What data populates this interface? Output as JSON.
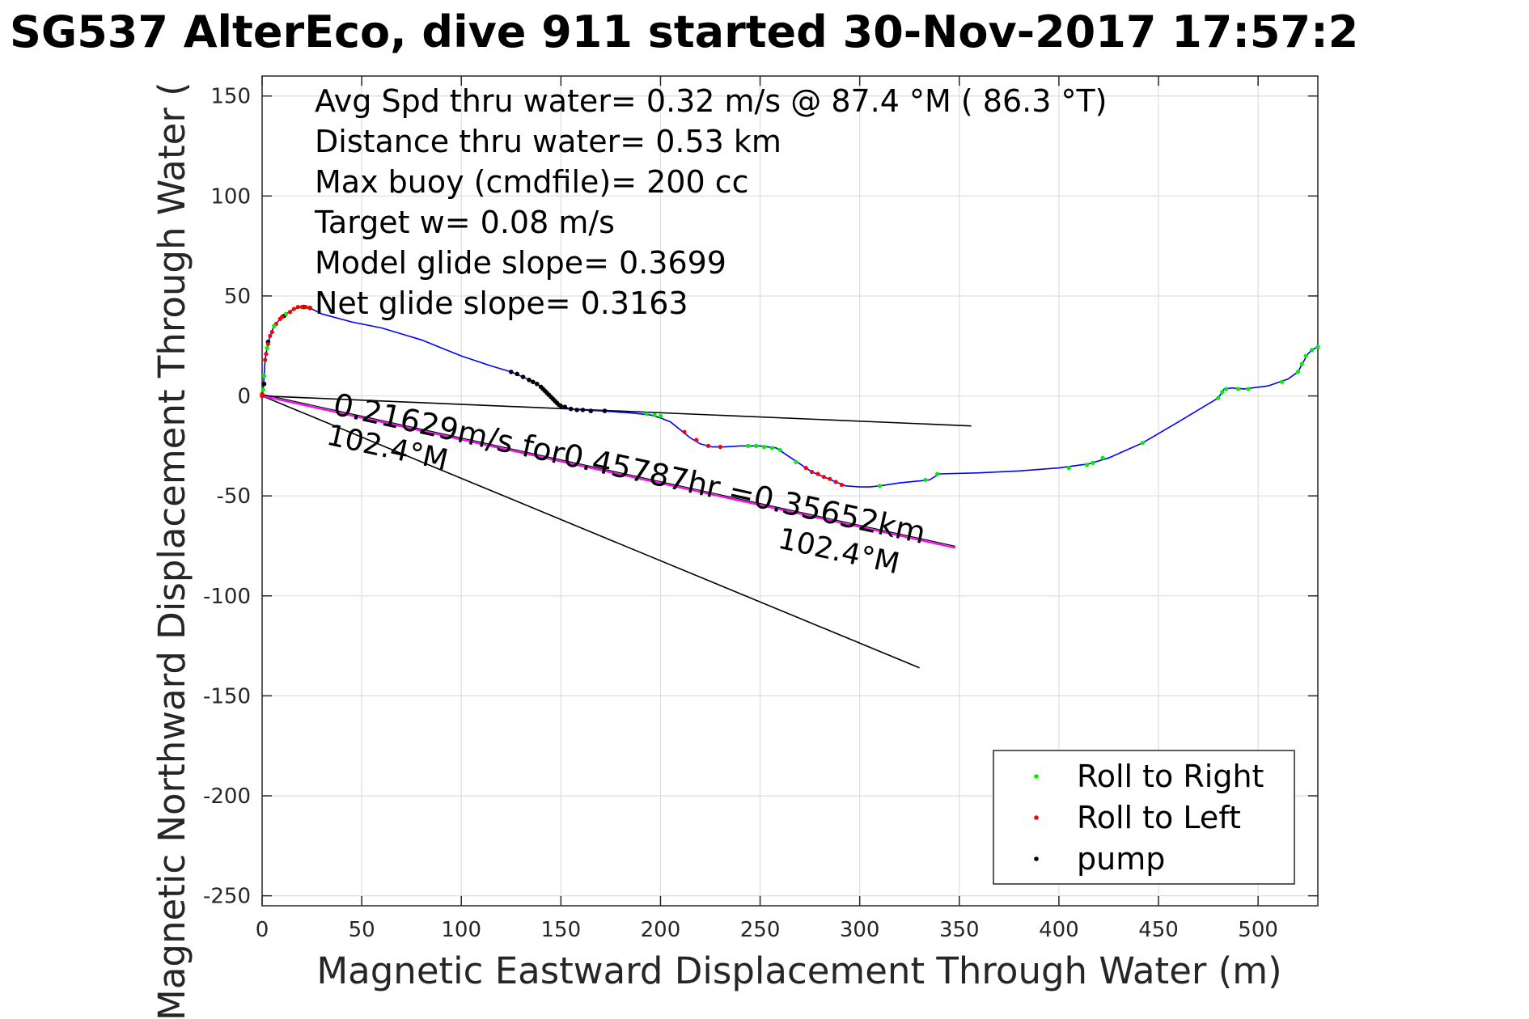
{
  "chart_data": {
    "type": "scatter",
    "title": "SG537 AlterEco, dive 911 started 30-Nov-2017 17:57:2",
    "xlabel": "Magnetic Eastward Displacement Through Water (m)",
    "ylabel": "Magnetic Northward Displacement Through Water (",
    "xlim": [
      0,
      530
    ],
    "ylim": [
      -255,
      160
    ],
    "xticks": [
      0,
      50,
      100,
      150,
      200,
      250,
      300,
      350,
      400,
      450,
      500
    ],
    "yticks": [
      150,
      100,
      50,
      0,
      -50,
      -100,
      -150,
      -200,
      -250
    ],
    "grid": true,
    "legend_position": "bottom-right",
    "info_lines": [
      "Avg Spd thru water=  0.32 m/s @  87.4 °M ( 86.3 °T)",
      "Distance thru water=  0.53 km",
      "Max buoy (cmdfile)= 200 cc",
      "Target w= 0.08 m/s",
      "Model glide slope= 0.3699",
      "Net glide slope= 0.3163"
    ],
    "annotations": {
      "current_label": "0.21629m/s for0.45787hr =0.35652km",
      "heading_label_1": "102.4°M",
      "heading_label_2": "102.4°M"
    },
    "colors": {
      "track": "#0000ff",
      "roll_right": "#00ee00",
      "roll_left": "#ff0000",
      "pump": "#000000",
      "current_line": "#ff00ff",
      "reference_lines": "#000000",
      "grid": "#dddddd"
    },
    "track": [
      [
        0,
        0
      ],
      [
        0.5,
        3
      ],
      [
        1,
        10
      ],
      [
        1.5,
        18
      ],
      [
        2.5,
        24
      ],
      [
        4,
        30
      ],
      [
        6,
        35
      ],
      [
        9,
        38.5
      ],
      [
        12,
        41
      ],
      [
        16,
        43.5
      ],
      [
        20,
        44.5
      ],
      [
        24,
        44
      ],
      [
        30,
        41
      ],
      [
        45,
        37
      ],
      [
        60,
        34
      ],
      [
        80,
        28
      ],
      [
        100,
        20
      ],
      [
        115,
        15
      ],
      [
        125,
        12
      ],
      [
        132,
        9
      ],
      [
        138,
        6
      ],
      [
        142,
        3
      ],
      [
        145,
        0
      ],
      [
        148,
        -3
      ],
      [
        150,
        -5
      ],
      [
        155,
        -6.5
      ],
      [
        160,
        -7
      ],
      [
        170,
        -7.5
      ],
      [
        185,
        -8.5
      ],
      [
        195,
        -9.5
      ],
      [
        200,
        -11
      ],
      [
        205,
        -13
      ],
      [
        210,
        -17
      ],
      [
        215,
        -21
      ],
      [
        220,
        -24
      ],
      [
        226,
        -25.5
      ],
      [
        232,
        -25.5
      ],
      [
        240,
        -25
      ],
      [
        250,
        -25
      ],
      [
        258,
        -26
      ],
      [
        264,
        -30
      ],
      [
        270,
        -34
      ],
      [
        276,
        -38
      ],
      [
        282,
        -40.5
      ],
      [
        288,
        -43
      ],
      [
        293,
        -45
      ],
      [
        300,
        -45.5
      ],
      [
        305,
        -45.5
      ],
      [
        310,
        -45
      ],
      [
        320,
        -43.5
      ],
      [
        335,
        -42
      ],
      [
        340,
        -39
      ],
      [
        360,
        -38.5
      ],
      [
        380,
        -37.5
      ],
      [
        400,
        -36
      ],
      [
        415,
        -34
      ],
      [
        425,
        -31
      ],
      [
        442,
        -23.5
      ],
      [
        460,
        -13
      ],
      [
        480,
        -1
      ],
      [
        483,
        3.5
      ],
      [
        487,
        4
      ],
      [
        493,
        3.5
      ],
      [
        505,
        5
      ],
      [
        515,
        8.5
      ],
      [
        520,
        12
      ],
      [
        523,
        17.5
      ],
      [
        525,
        21
      ],
      [
        527,
        23
      ],
      [
        530,
        24.5
      ]
    ],
    "roll_right": [
      [
        0.5,
        3
      ],
      [
        1,
        10
      ],
      [
        2.5,
        24
      ],
      [
        6,
        35
      ],
      [
        12,
        41
      ],
      [
        193,
        -9
      ],
      [
        197,
        -9.5
      ],
      [
        200,
        -10
      ],
      [
        244,
        -25
      ],
      [
        248,
        -25
      ],
      [
        252,
        -25.5
      ],
      [
        256,
        -26
      ],
      [
        260,
        -27
      ],
      [
        268,
        -33
      ],
      [
        310,
        -45
      ],
      [
        333,
        -42
      ],
      [
        339,
        -39
      ],
      [
        405,
        -36
      ],
      [
        414,
        -34.5
      ],
      [
        417,
        -33.5
      ],
      [
        422,
        -31
      ],
      [
        442,
        -23.5
      ],
      [
        480,
        -1
      ],
      [
        482,
        2
      ],
      [
        484,
        3.5
      ],
      [
        490,
        3.5
      ],
      [
        495,
        3.5
      ],
      [
        512,
        7
      ],
      [
        520,
        12
      ],
      [
        522,
        16
      ],
      [
        524,
        20
      ],
      [
        527,
        23
      ],
      [
        530,
        24.5
      ]
    ],
    "roll_left": [
      [
        0,
        0
      ],
      [
        0,
        1
      ],
      [
        1.5,
        18
      ],
      [
        2,
        21
      ],
      [
        3,
        26
      ],
      [
        4,
        30
      ],
      [
        5,
        32
      ],
      [
        7,
        36
      ],
      [
        9,
        38.5
      ],
      [
        10,
        39.5
      ],
      [
        14,
        42
      ],
      [
        16,
        43.5
      ],
      [
        18,
        44.5
      ],
      [
        20,
        44.5
      ],
      [
        22,
        44.5
      ],
      [
        24,
        44
      ],
      [
        212,
        -18
      ],
      [
        218,
        -22
      ],
      [
        224,
        -25
      ],
      [
        230,
        -25.5
      ],
      [
        273,
        -36
      ],
      [
        276,
        -38
      ],
      [
        279,
        -39
      ],
      [
        282,
        -40.5
      ],
      [
        285,
        -41.5
      ],
      [
        288,
        -43
      ],
      [
        291,
        -44.5
      ]
    ],
    "pump": [
      [
        125,
        12
      ],
      [
        128,
        11
      ],
      [
        131,
        9.5
      ],
      [
        134,
        8
      ],
      [
        136,
        7
      ],
      [
        138,
        6
      ],
      [
        140,
        4.5
      ],
      [
        141,
        3.5
      ],
      [
        142,
        2.5
      ],
      [
        143,
        1.5
      ],
      [
        144,
        0.5
      ],
      [
        145,
        -0.5
      ],
      [
        146,
        -1.5
      ],
      [
        147,
        -2.5
      ],
      [
        148,
        -3.5
      ],
      [
        149,
        -4.5
      ],
      [
        150,
        -5
      ],
      [
        152,
        -5.5
      ],
      [
        155,
        -6.5
      ],
      [
        158,
        -7
      ],
      [
        161,
        -7
      ],
      [
        165,
        -7.5
      ],
      [
        172,
        -7.5
      ],
      [
        0,
        0
      ],
      [
        1,
        6
      ],
      [
        3,
        27
      ],
      [
        11,
        40
      ],
      [
        21,
        44.5
      ],
      [
        24,
        44
      ]
    ],
    "reference_lines": [
      [
        [
          0,
          0
        ],
        [
          356,
          -15
        ]
      ],
      [
        [
          0,
          0
        ],
        [
          330,
          -136
        ]
      ]
    ],
    "current_line": [
      [
        0,
        0
      ],
      [
        348,
        -76
      ]
    ],
    "legend": [
      {
        "label": "Roll to Right",
        "key": "roll_right"
      },
      {
        "label": "Roll to Left",
        "key": "roll_left"
      },
      {
        "label": "pump",
        "key": "pump"
      }
    ]
  }
}
